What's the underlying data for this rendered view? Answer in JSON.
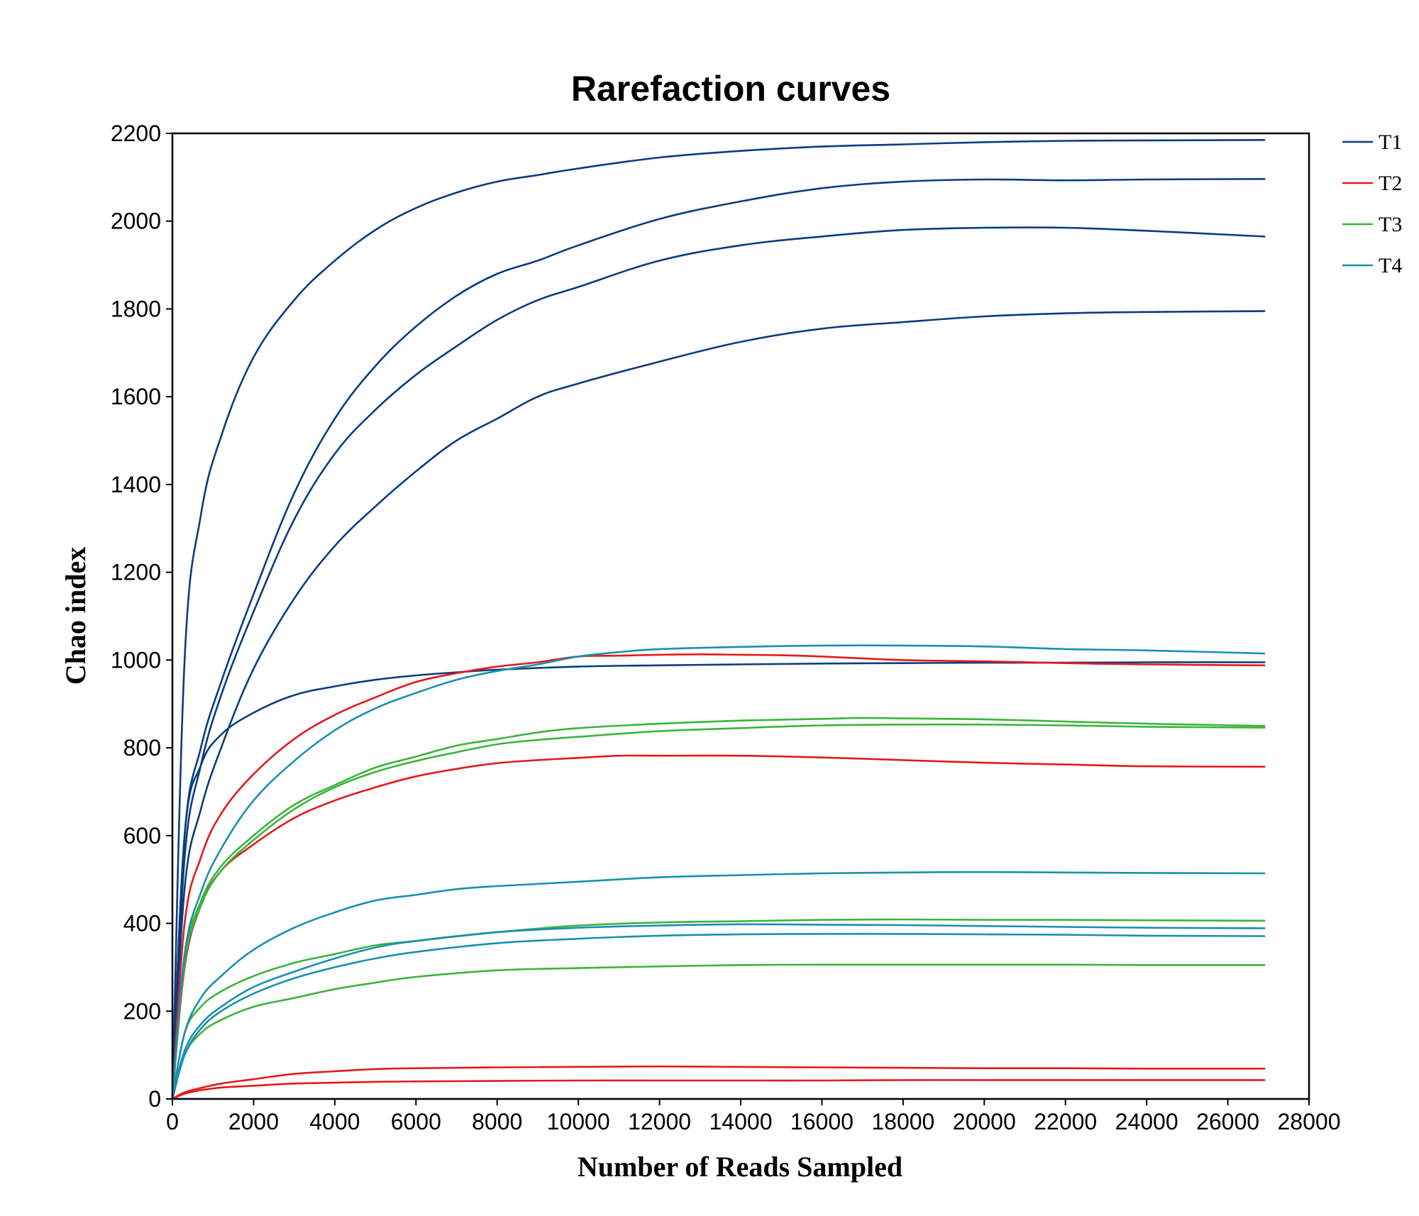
{
  "chart_data": {
    "type": "line",
    "title": "Rarefaction curves",
    "xlabel": "Number of Reads Sampled",
    "ylabel": "Chao index",
    "xlim": [
      0,
      28000
    ],
    "ylim": [
      0,
      2200
    ],
    "xticks": [
      0,
      2000,
      4000,
      6000,
      8000,
      10000,
      12000,
      14000,
      16000,
      18000,
      20000,
      22000,
      24000,
      26000,
      28000
    ],
    "yticks": [
      0,
      200,
      400,
      600,
      800,
      1000,
      1200,
      1400,
      1600,
      1800,
      2000,
      2200
    ],
    "legend_position": "top-right, outside plot",
    "groups": [
      {
        "name": "T1",
        "color": "#0b3d7d"
      },
      {
        "name": "T2",
        "color": "#e31a1c"
      },
      {
        "name": "T3",
        "color": "#3cb43c"
      },
      {
        "name": "T4",
        "color": "#1a8fb0"
      }
    ],
    "series": [
      {
        "name": "T1",
        "x": [
          0,
          300,
          700,
          1200,
          2000,
          3000,
          4000,
          5000,
          6000,
          7000,
          8000,
          9000,
          10000,
          12000,
          14000,
          16000,
          18000,
          20000,
          22000,
          24000,
          26900
        ],
        "y": [
          0,
          1000,
          1330,
          1510,
          1690,
          1820,
          1910,
          1980,
          2030,
          2065,
          2090,
          2105,
          2120,
          2145,
          2160,
          2170,
          2175,
          2180,
          2183,
          2184,
          2185
        ]
      },
      {
        "name": "T1",
        "x": [
          0,
          300,
          700,
          1200,
          2000,
          3000,
          4000,
          5000,
          6000,
          7000,
          8000,
          9000,
          10000,
          12000,
          14000,
          16000,
          18000,
          20000,
          22000,
          24000,
          26900
        ],
        "y": [
          0,
          600,
          800,
          950,
          1150,
          1380,
          1550,
          1670,
          1760,
          1830,
          1880,
          1910,
          1945,
          2005,
          2045,
          2075,
          2090,
          2095,
          2093,
          2095,
          2096
        ]
      },
      {
        "name": "T1",
        "x": [
          0,
          300,
          700,
          1200,
          2000,
          3000,
          4000,
          5000,
          6000,
          7000,
          8000,
          9000,
          10000,
          12000,
          14000,
          16000,
          18000,
          20000,
          22000,
          24000,
          26900
        ],
        "y": [
          0,
          550,
          760,
          920,
          1110,
          1320,
          1470,
          1570,
          1650,
          1715,
          1775,
          1820,
          1850,
          1910,
          1945,
          1965,
          1980,
          1985,
          1985,
          1978,
          1965
        ]
      },
      {
        "name": "T1",
        "x": [
          0,
          300,
          700,
          1200,
          2000,
          3000,
          4000,
          5000,
          6000,
          7000,
          8000,
          9000,
          10000,
          12000,
          14000,
          16000,
          18000,
          20000,
          22000,
          24000,
          26900
        ],
        "y": [
          0,
          480,
          660,
          800,
          980,
          1140,
          1260,
          1350,
          1430,
          1500,
          1550,
          1600,
          1630,
          1680,
          1725,
          1755,
          1770,
          1783,
          1790,
          1793,
          1795
        ]
      },
      {
        "name": "T1",
        "x": [
          0,
          300,
          700,
          1200,
          2000,
          3000,
          4000,
          5000,
          6000,
          7000,
          8000,
          10000,
          12000,
          14000,
          16000,
          18000,
          20000,
          22000,
          24000,
          26900
        ],
        "y": [
          0,
          600,
          760,
          830,
          880,
          920,
          940,
          955,
          965,
          972,
          978,
          985,
          988,
          990,
          992,
          993,
          994,
          994,
          995,
          995
        ]
      },
      {
        "name": "T2",
        "x": [
          0,
          300,
          700,
          1200,
          2000,
          3000,
          4000,
          5000,
          6000,
          7000,
          8000,
          9000,
          10000,
          11000,
          12000,
          13000,
          14000,
          15000,
          16000,
          18000,
          20000,
          22000,
          24000,
          26900
        ],
        "y": [
          0,
          400,
          550,
          650,
          740,
          820,
          875,
          915,
          950,
          970,
          985,
          995,
          1008,
          1010,
          1012,
          1013,
          1012,
          1011,
          1008,
          1000,
          997,
          993,
          990,
          988
        ]
      },
      {
        "name": "T2",
        "x": [
          0,
          300,
          700,
          1200,
          2000,
          3000,
          4000,
          5000,
          6000,
          7000,
          8000,
          9000,
          10000,
          11000,
          12000,
          14000,
          16000,
          18000,
          20000,
          22000,
          24000,
          26900
        ],
        "y": [
          0,
          300,
          440,
          520,
          580,
          640,
          680,
          710,
          735,
          752,
          765,
          772,
          777,
          782,
          782,
          782,
          778,
          772,
          766,
          762,
          758,
          757
        ]
      },
      {
        "name": "T2",
        "x": [
          0,
          300,
          700,
          1200,
          2000,
          3000,
          4000,
          5000,
          6000,
          8000,
          10000,
          12000,
          14000,
          16000,
          18000,
          20000,
          22000,
          24000,
          26900
        ],
        "y": [
          0,
          15,
          25,
          35,
          45,
          57,
          63,
          68,
          70,
          72,
          73,
          74,
          73,
          72,
          71,
          70,
          70,
          69,
          69
        ]
      },
      {
        "name": "T2",
        "x": [
          0,
          300,
          700,
          1200,
          2000,
          3000,
          4000,
          5000,
          6000,
          8000,
          10000,
          12000,
          14000,
          16000,
          18000,
          20000,
          22000,
          24000,
          26900
        ],
        "y": [
          0,
          12,
          20,
          26,
          30,
          35,
          37,
          39,
          40,
          41,
          42,
          42,
          42,
          42,
          43,
          43,
          43,
          43,
          43
        ]
      },
      {
        "name": "T3",
        "x": [
          0,
          300,
          700,
          1200,
          2000,
          3000,
          4000,
          5000,
          6000,
          7000,
          8000,
          9000,
          10000,
          12000,
          14000,
          16000,
          17000,
          18000,
          20000,
          22000,
          24000,
          26900
        ],
        "y": [
          0,
          320,
          450,
          530,
          600,
          670,
          715,
          755,
          780,
          805,
          820,
          835,
          845,
          855,
          862,
          866,
          868,
          867,
          865,
          860,
          855,
          850
        ]
      },
      {
        "name": "T3",
        "x": [
          0,
          300,
          700,
          1200,
          2000,
          3000,
          4000,
          5000,
          6000,
          7000,
          8000,
          9000,
          10000,
          12000,
          14000,
          16000,
          18000,
          20000,
          22000,
          24000,
          26900
        ],
        "y": [
          0,
          310,
          440,
          520,
          590,
          660,
          710,
          745,
          770,
          790,
          808,
          818,
          825,
          838,
          845,
          851,
          853,
          853,
          851,
          848,
          846
        ]
      },
      {
        "name": "T3",
        "x": [
          0,
          300,
          700,
          1200,
          2000,
          3000,
          4000,
          5000,
          6000,
          8000,
          10000,
          12000,
          14000,
          16000,
          18000,
          20000,
          22000,
          24000,
          26900
        ],
        "y": [
          0,
          150,
          210,
          245,
          280,
          310,
          330,
          350,
          360,
          380,
          395,
          402,
          405,
          408,
          409,
          408,
          408,
          407,
          406
        ]
      },
      {
        "name": "T3",
        "x": [
          0,
          300,
          700,
          1200,
          2000,
          3000,
          4000,
          5000,
          6000,
          8000,
          10000,
          12000,
          14000,
          16000,
          18000,
          20000,
          22000,
          24000,
          26900
        ],
        "y": [
          0,
          100,
          150,
          180,
          210,
          230,
          250,
          265,
          278,
          293,
          298,
          302,
          305,
          306,
          306,
          306,
          306,
          305,
          305
        ]
      },
      {
        "name": "T4",
        "x": [
          0,
          300,
          700,
          1200,
          2000,
          3000,
          4000,
          5000,
          6000,
          7000,
          8000,
          9000,
          10000,
          11000,
          12000,
          14000,
          16000,
          18000,
          20000,
          22000,
          24000,
          26900
        ],
        "y": [
          0,
          330,
          470,
          570,
          680,
          770,
          840,
          890,
          925,
          955,
          975,
          990,
          1008,
          1018,
          1025,
          1030,
          1033,
          1033,
          1031,
          1025,
          1022,
          1015
        ]
      },
      {
        "name": "T4",
        "x": [
          0,
          300,
          700,
          1200,
          2000,
          3000,
          4000,
          5000,
          6000,
          7000,
          8000,
          10000,
          12000,
          14000,
          16000,
          18000,
          20000,
          22000,
          24000,
          26900
        ],
        "y": [
          0,
          150,
          230,
          280,
          340,
          390,
          425,
          452,
          465,
          478,
          485,
          495,
          505,
          510,
          514,
          516,
          517,
          516,
          515,
          514
        ]
      },
      {
        "name": "T4",
        "x": [
          0,
          300,
          700,
          1200,
          2000,
          3000,
          4000,
          5000,
          6000,
          8000,
          10000,
          12000,
          14000,
          16000,
          18000,
          20000,
          22000,
          24000,
          26900
        ],
        "y": [
          0,
          110,
          170,
          210,
          255,
          290,
          320,
          345,
          360,
          380,
          390,
          395,
          398,
          397,
          396,
          394,
          392,
          390,
          389
        ]
      },
      {
        "name": "T4",
        "x": [
          0,
          300,
          700,
          1200,
          2000,
          3000,
          4000,
          5000,
          6000,
          8000,
          10000,
          12000,
          14000,
          16000,
          18000,
          20000,
          22000,
          24000,
          26900
        ],
        "y": [
          0,
          100,
          160,
          200,
          240,
          275,
          300,
          320,
          335,
          355,
          365,
          372,
          375,
          376,
          376,
          375,
          374,
          372,
          371
        ]
      }
    ]
  }
}
